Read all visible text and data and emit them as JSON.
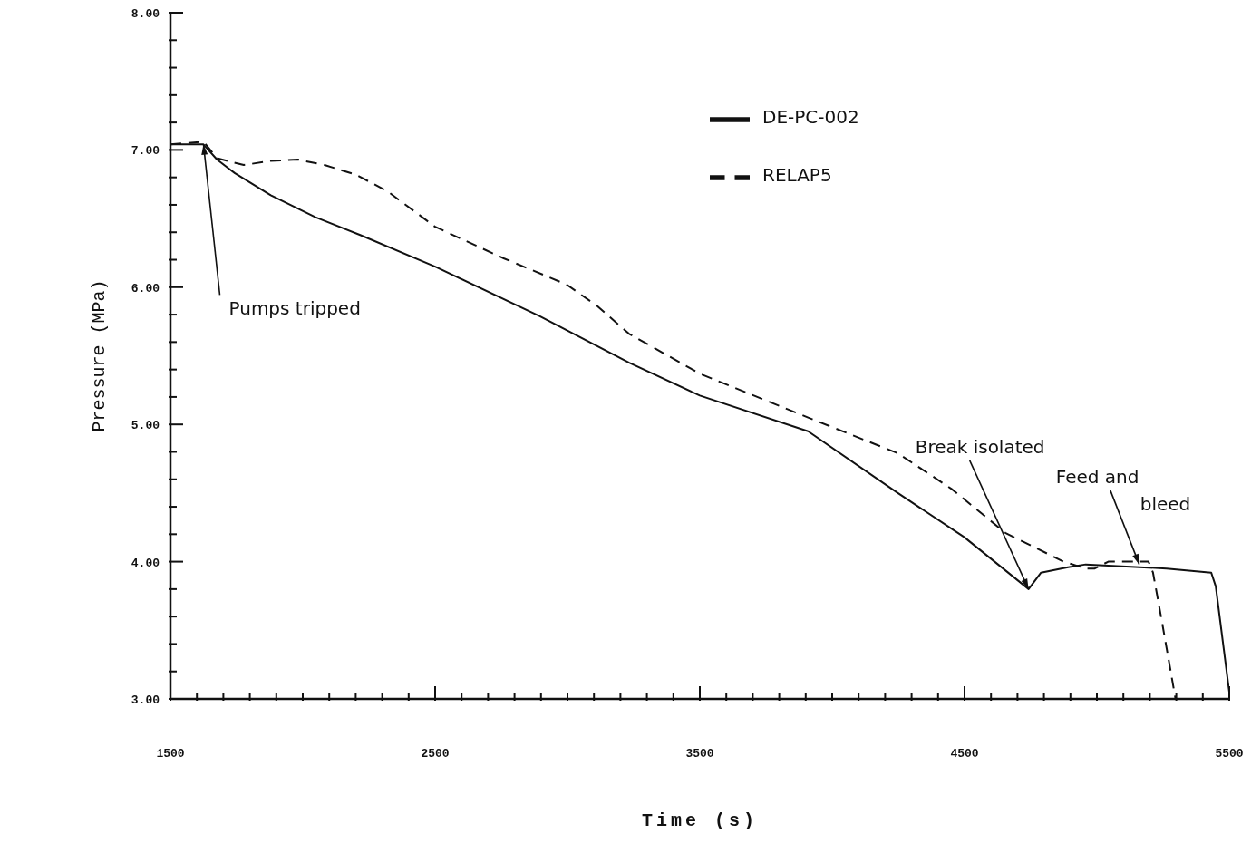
{
  "chart_data": {
    "type": "line",
    "xlabel": "Time (s)",
    "ylabel": "Pressure (MPa)",
    "xlim": [
      1500,
      5500
    ],
    "xticks": [
      {
        "value": 1500,
        "label": "1500"
      },
      {
        "value": 1600,
        "label": null
      },
      {
        "value": 1700,
        "label": null
      },
      {
        "value": 1800,
        "label": null
      },
      {
        "value": 1900,
        "label": null
      },
      {
        "value": 2000,
        "label": null
      },
      {
        "value": 2100,
        "label": null
      },
      {
        "value": 2200,
        "label": null
      },
      {
        "value": 2300,
        "label": null
      },
      {
        "value": 2400,
        "label": null
      },
      {
        "value": 2500,
        "label": "2500"
      },
      {
        "value": 2600,
        "label": null
      },
      {
        "value": 2700,
        "label": null
      },
      {
        "value": 2800,
        "label": null
      },
      {
        "value": 2900,
        "label": null
      },
      {
        "value": 3000,
        "label": null
      },
      {
        "value": 3100,
        "label": null
      },
      {
        "value": 3200,
        "label": null
      },
      {
        "value": 3300,
        "label": null
      },
      {
        "value": 3400,
        "label": null
      },
      {
        "value": 3500,
        "label": "3500"
      },
      {
        "value": 3600,
        "label": null
      },
      {
        "value": 3700,
        "label": null
      },
      {
        "value": 3800,
        "label": null
      },
      {
        "value": 3900,
        "label": null
      },
      {
        "value": 4000,
        "label": null
      },
      {
        "value": 4100,
        "label": null
      },
      {
        "value": 4200,
        "label": null
      },
      {
        "value": 4300,
        "label": null
      },
      {
        "value": 4400,
        "label": null
      },
      {
        "value": 4500,
        "label": "4500"
      },
      {
        "value": 4600,
        "label": null
      },
      {
        "value": 4700,
        "label": null
      },
      {
        "value": 4800,
        "label": null
      },
      {
        "value": 4900,
        "label": null
      },
      {
        "value": 5000,
        "label": null
      },
      {
        "value": 5100,
        "label": null
      },
      {
        "value": 5200,
        "label": null
      },
      {
        "value": 5300,
        "label": null
      },
      {
        "value": 5400,
        "label": null
      },
      {
        "value": 5500,
        "label": "5500"
      }
    ],
    "ylim": [
      3,
      8
    ],
    "yticks": [
      {
        "value": 3,
        "label": "3.00"
      },
      {
        "value": 3.2,
        "label": null
      },
      {
        "value": 3.4,
        "label": null
      },
      {
        "value": 3.6,
        "label": null
      },
      {
        "value": 3.8,
        "label": null
      },
      {
        "value": 4,
        "label": "4.00"
      },
      {
        "value": 4.2,
        "label": null
      },
      {
        "value": 4.4,
        "label": null
      },
      {
        "value": 4.6,
        "label": null
      },
      {
        "value": 4.8,
        "label": null
      },
      {
        "value": 5,
        "label": "5.00"
      },
      {
        "value": 5.2,
        "label": null
      },
      {
        "value": 5.4,
        "label": null
      },
      {
        "value": 5.6,
        "label": null
      },
      {
        "value": 5.8,
        "label": null
      },
      {
        "value": 6,
        "label": "6.00"
      },
      {
        "value": 6.2,
        "label": null
      },
      {
        "value": 6.4,
        "label": null
      },
      {
        "value": 6.6,
        "label": null
      },
      {
        "value": 6.8,
        "label": null
      },
      {
        "value": 7,
        "label": "7.00"
      },
      {
        "value": 7.2,
        "label": null
      },
      {
        "value": 7.4,
        "label": null
      },
      {
        "value": 7.6,
        "label": null
      },
      {
        "value": 7.8,
        "label": null
      },
      {
        "value": 8,
        "label": "8.00"
      }
    ],
    "grid": false,
    "legend": "top right",
    "marker": "none",
    "series": [
      {
        "name": "DE-PC-002",
        "color": "#111111",
        "line_style": "solid",
        "x": [
          1500,
          1625,
          1676,
          1744,
          1879,
          2048,
          2217,
          2500,
          2894,
          3233,
          3500,
          3909,
          4248,
          4498,
          4742,
          4789,
          4891,
          4958,
          5263,
          5432,
          5449,
          5500
        ],
        "values": [
          7.04,
          7.04,
          6.93,
          6.83,
          6.67,
          6.51,
          6.38,
          6.15,
          5.79,
          5.45,
          5.21,
          4.95,
          4.5,
          4.18,
          3.8,
          3.92,
          3.96,
          3.98,
          3.95,
          3.92,
          3.82,
          3.05
        ]
      },
      {
        "name": "RELAP5",
        "color": "#111111",
        "line_style": "dashed",
        "x": [
          1500,
          1625,
          1676,
          1777,
          1879,
          1981,
          2082,
          2200,
          2319,
          2500,
          2759,
          2996,
          3114,
          3233,
          3500,
          3909,
          4248,
          4451,
          4654,
          4874,
          4958,
          4992,
          5043,
          5195,
          5212,
          5246,
          5297
        ],
        "values": [
          7.04,
          7.06,
          6.94,
          6.89,
          6.92,
          6.93,
          6.89,
          6.82,
          6.7,
          6.44,
          6.21,
          6.02,
          5.86,
          5.66,
          5.37,
          5.05,
          4.79,
          4.53,
          4.21,
          4.0,
          3.95,
          3.95,
          4.0,
          4.0,
          3.92,
          3.56,
          3.0
        ]
      }
    ],
    "annotations": [
      {
        "text": "Pumps tripped",
        "x": 1625,
        "y": 7.04
      },
      {
        "text": "Break isolated",
        "x": 4742,
        "y": 3.8
      },
      {
        "text": "Feed and bleed",
        "x": 5160,
        "y": 3.98
      }
    ]
  }
}
